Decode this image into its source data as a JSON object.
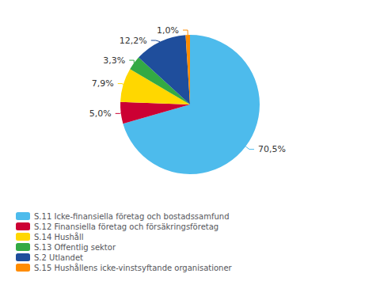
{
  "chart_data": {
    "type": "pie",
    "categories": [
      "S.11 Icke-finansiella företag och bostadssamfund",
      "S.12 Finansiella företag och försäkringsföretag",
      "S.14 Hushåll",
      "S.13 Offentlig sektor",
      "S.2 Utlandet",
      "S.15 Hushållens icke-vinstsyftande organisationer"
    ],
    "values": [
      70.5,
      5.0,
      7.9,
      3.3,
      12.2,
      1.0
    ],
    "value_labels": [
      "70,5%",
      "5,0%",
      "7,9%",
      "3,3%",
      "12,2%",
      "1,0%"
    ],
    "colors": [
      "#4DBBEC",
      "#CC0033",
      "#FFD700",
      "#33AA44",
      "#1F4E9C",
      "#FF8C00"
    ],
    "data_labels": true,
    "legend": "bottom left"
  }
}
